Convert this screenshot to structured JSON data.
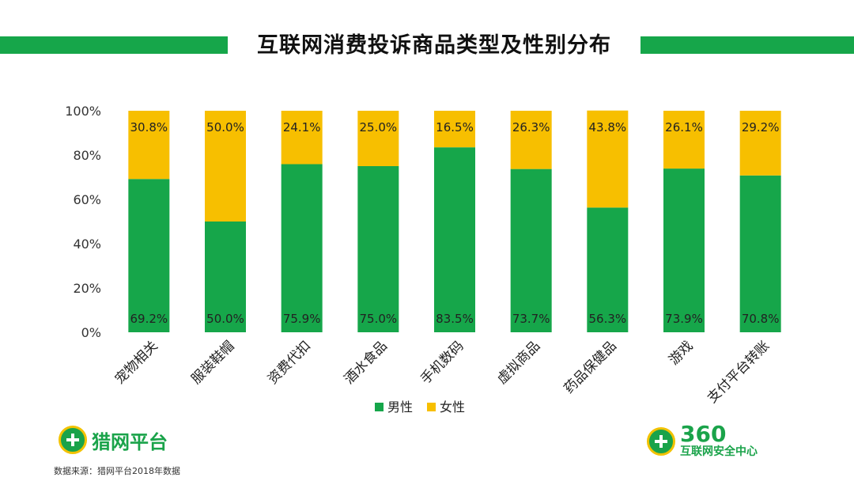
{
  "header": {
    "title": "互联网消费投诉商品类型及性别分布"
  },
  "chart_data": {
    "type": "bar",
    "stacked": true,
    "title": "互联网消费投诉商品类型及性别分布",
    "categories": [
      "宠物相关",
      "服装鞋帽",
      "资费代扣",
      "酒水食品",
      "手机数码",
      "虚拟商品",
      "药品保健品",
      "游戏",
      "支付平台转账"
    ],
    "series": [
      {
        "name": "男性",
        "color": "#16a64a",
        "values": [
          69.2,
          50.0,
          75.9,
          75.0,
          83.5,
          73.7,
          56.3,
          73.9,
          70.8
        ]
      },
      {
        "name": "女性",
        "color": "#f7bf00",
        "values": [
          30.8,
          50.0,
          24.1,
          25.0,
          16.5,
          26.3,
          43.8,
          26.1,
          29.2
        ]
      }
    ],
    "ylim": [
      0,
      100
    ],
    "yticks": [
      "0%",
      "20%",
      "40%",
      "60%",
      "80%",
      "100%"
    ],
    "legend_position": "bottom",
    "grid": false
  },
  "logos": {
    "left_name": "猎网平台",
    "right_name": "360",
    "right_subtitle": "互联网安全中心"
  },
  "footer": {
    "source": "数据来源：猎网平台2018年数据"
  }
}
